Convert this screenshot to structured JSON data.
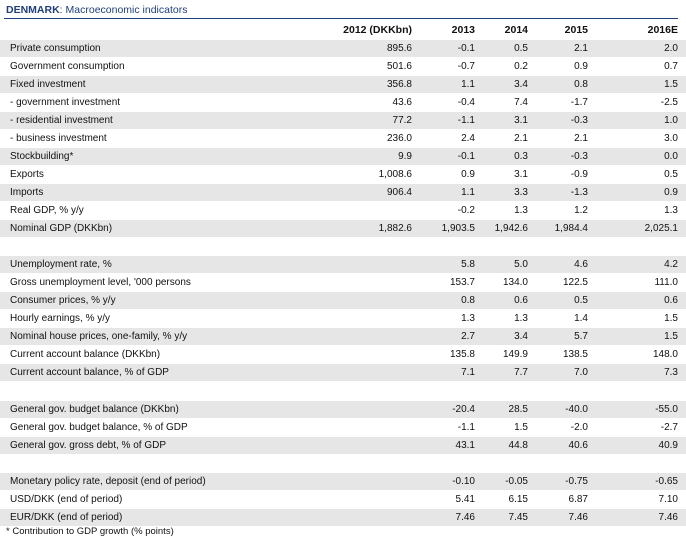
{
  "title": {
    "country": "DENMARK",
    "subtitle": "Macroeconomic indicators"
  },
  "columns": [
    "2012 (DKKbn)",
    "2013",
    "2014",
    "2015",
    "2016E"
  ],
  "sections": [
    {
      "rows": [
        {
          "label": "Private consumption",
          "values": [
            "895.6",
            "-0.1",
            "0.5",
            "2.1",
            "2.0"
          ]
        },
        {
          "label": "Government consumption",
          "values": [
            "501.6",
            "-0.7",
            "0.2",
            "0.9",
            "0.7"
          ]
        },
        {
          "label": "Fixed investment",
          "values": [
            "356.8",
            "1.1",
            "3.4",
            "0.8",
            "1.5"
          ]
        },
        {
          "label": "- government investment",
          "values": [
            "43.6",
            "-0.4",
            "7.4",
            "-1.7",
            "-2.5"
          ]
        },
        {
          "label": "- residential investment",
          "values": [
            "77.2",
            "-1.1",
            "3.1",
            "-0.3",
            "1.0"
          ]
        },
        {
          "label": "- business investment",
          "values": [
            "236.0",
            "2.4",
            "2.1",
            "2.1",
            "3.0"
          ]
        },
        {
          "label": "Stockbuilding*",
          "values": [
            "9.9",
            "-0.1",
            "0.3",
            "-0.3",
            "0.0"
          ]
        },
        {
          "label": "Exports",
          "values": [
            "1,008.6",
            "0.9",
            "3.1",
            "-0.9",
            "0.5"
          ]
        },
        {
          "label": "Imports",
          "values": [
            "906.4",
            "1.1",
            "3.3",
            "-1.3",
            "0.9"
          ]
        },
        {
          "label": "Real GDP, % y/y",
          "values": [
            "",
            "-0.2",
            "1.3",
            "1.2",
            "1.3"
          ]
        },
        {
          "label": "Nominal GDP (DKKbn)",
          "values": [
            "1,882.6",
            "1,903.5",
            "1,942.6",
            "1,984.4",
            "2,025.1"
          ]
        }
      ]
    },
    {
      "rows": [
        {
          "label": "Unemployment rate, %",
          "values": [
            "",
            "5.8",
            "5.0",
            "4.6",
            "4.2"
          ]
        },
        {
          "label": "Gross unemployment level, '000 persons",
          "values": [
            "",
            "153.7",
            "134.0",
            "122.5",
            "111.0"
          ]
        },
        {
          "label": "Consumer prices, % y/y",
          "values": [
            "",
            "0.8",
            "0.6",
            "0.5",
            "0.6"
          ]
        },
        {
          "label": "Hourly earnings, % y/y",
          "values": [
            "",
            "1.3",
            "1.3",
            "1.4",
            "1.5"
          ]
        },
        {
          "label": "Nominal house prices, one-family, % y/y",
          "values": [
            "",
            "2.7",
            "3.4",
            "5.7",
            "1.5"
          ]
        },
        {
          "label": "Current account balance (DKKbn)",
          "values": [
            "",
            "135.8",
            "149.9",
            "138.5",
            "148.0"
          ]
        },
        {
          "label": "Current account balance, % of GDP",
          "values": [
            "",
            "7.1",
            "7.7",
            "7.0",
            "7.3"
          ]
        }
      ]
    },
    {
      "rows": [
        {
          "label": "General gov. budget balance (DKKbn)",
          "values": [
            "",
            "-20.4",
            "28.5",
            "-40.0",
            "-55.0"
          ]
        },
        {
          "label": "General gov. budget balance, % of GDP",
          "values": [
            "",
            "-1.1",
            "1.5",
            "-2.0",
            "-2.7"
          ]
        },
        {
          "label": "General gov. gross debt, % of GDP",
          "values": [
            "",
            "43.1",
            "44.8",
            "40.6",
            "40.9"
          ]
        }
      ]
    },
    {
      "rows": [
        {
          "label": "Monetary policy rate, deposit (end of period)",
          "values": [
            "",
            "-0.10",
            "-0.05",
            "-0.75",
            "-0.65"
          ]
        },
        {
          "label": "USD/DKK (end of period)",
          "values": [
            "",
            "5.41",
            "6.15",
            "6.87",
            "7.10"
          ]
        },
        {
          "label": "EUR/DKK (end of period)",
          "values": [
            "",
            "7.46",
            "7.45",
            "7.46",
            "7.46"
          ]
        }
      ]
    }
  ],
  "footnote": "* Contribution to GDP growth (% points)",
  "colors": {
    "title": "#1f3f7a",
    "shade": "#e6e6e6"
  }
}
